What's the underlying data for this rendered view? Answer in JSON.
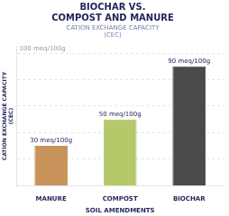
{
  "chart_data": {
    "type": "bar",
    "title": [
      "BIOCHAR VS.",
      "COMPOST AND MANURE"
    ],
    "subtitle": [
      "CATION EXCHANGE CAPACITY",
      "(CEC)"
    ],
    "x_label": "SOIL AMENDMENTS",
    "y_label": [
      "CATION EXCHANGE CAPACITY",
      "(CEC)"
    ],
    "categories": [
      "MANURE",
      "COMPOST",
      "BIOCHAR"
    ],
    "values": [
      30,
      50,
      90
    ],
    "value_labels": [
      "30 meq/100g",
      "50 meq/100g",
      "90 meq/100g"
    ],
    "colors": [
      "#c8935a",
      "#b5c96a",
      "#4a4a4a"
    ],
    "ylim": [
      0,
      105
    ],
    "yticks": [
      20,
      40,
      60,
      80,
      100
    ],
    "grid": true,
    "data_labels": true,
    "tick_labels": "x",
    "annotations": [
      {
        "text": "100 meq/100g",
        "y": 100
      }
    ]
  }
}
